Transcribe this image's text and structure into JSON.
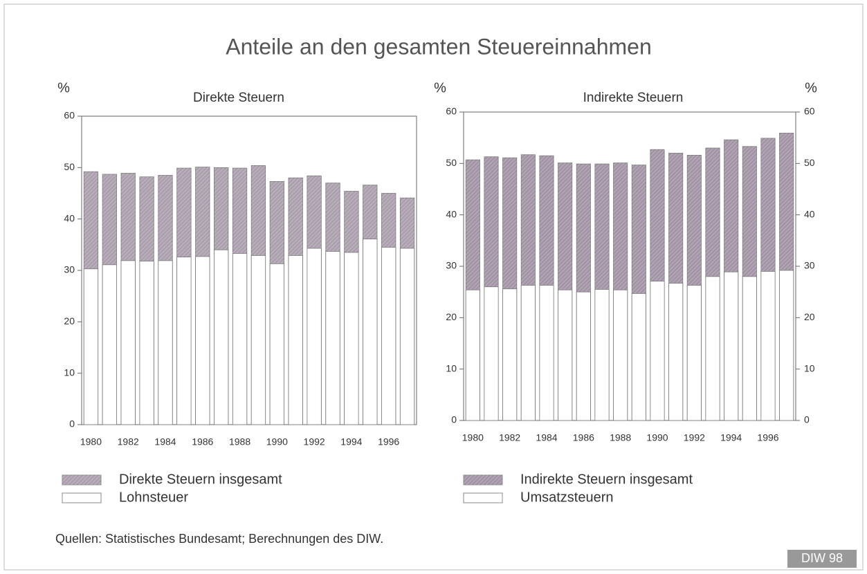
{
  "title": "Anteile an den gesamten Steuereinnahmen",
  "footnote": "Quellen: Statistisches Bundesamt; Berechnungen des DIW.",
  "badge": "DIW 98",
  "chart_data": [
    {
      "type": "bar",
      "subtitle": "Direkte Steuern",
      "y_label": "%",
      "categories": [
        "1980",
        null,
        "1982",
        null,
        "1984",
        null,
        "1986",
        null,
        "1988",
        null,
        "1990",
        null,
        "1992",
        null,
        "1994",
        null,
        "1996",
        null
      ],
      "series": [
        {
          "name": "Direkte Steuern insgesamt",
          "color": "#aca0ae",
          "values": [
            49.2,
            48.7,
            48.9,
            48.2,
            48.5,
            49.9,
            50.1,
            50.0,
            49.9,
            50.4,
            47.3,
            48.0,
            48.4,
            47.0,
            45.4,
            46.6,
            45.0,
            44.1
          ]
        },
        {
          "name": "Lohnsteuer",
          "color": "#ffffff",
          "values": [
            30.3,
            31.1,
            31.9,
            31.8,
            31.9,
            32.6,
            32.7,
            34.0,
            33.3,
            32.9,
            31.3,
            32.9,
            34.3,
            33.7,
            33.5,
            36.1,
            34.5,
            34.3
          ]
        }
      ],
      "ylim": [
        0,
        60
      ],
      "yticks": [
        0,
        10,
        20,
        30,
        40,
        50,
        60
      ]
    },
    {
      "type": "bar",
      "subtitle": "Indirekte Steuern",
      "y_label": "%",
      "y2_label": "%",
      "categories": [
        "1980",
        null,
        "1982",
        null,
        "1984",
        null,
        "1986",
        null,
        "1988",
        null,
        "1990",
        null,
        "1992",
        null,
        "1994",
        null,
        "1996",
        null
      ],
      "series": [
        {
          "name": "Indirekte Steuern insgesamt",
          "color": "#a394a6",
          "values": [
            50.7,
            51.3,
            51.1,
            51.7,
            51.5,
            50.1,
            49.9,
            49.9,
            50.1,
            49.7,
            52.7,
            52.0,
            51.6,
            53.0,
            54.6,
            53.3,
            54.9,
            55.9
          ]
        },
        {
          "name": "Umsatzsteuern",
          "color": "#ffffff",
          "values": [
            25.4,
            26.0,
            25.6,
            26.3,
            26.3,
            25.4,
            25.0,
            25.5,
            25.4,
            24.7,
            27.1,
            26.7,
            26.3,
            28.0,
            28.9,
            28.0,
            29.0,
            29.2
          ]
        }
      ],
      "ylim": [
        0,
        60
      ],
      "yticks": [
        0,
        10,
        20,
        30,
        40,
        50,
        60
      ],
      "y2lim": [
        0,
        60
      ],
      "y2ticks": [
        0,
        10,
        20,
        30,
        40,
        50,
        60
      ]
    }
  ]
}
